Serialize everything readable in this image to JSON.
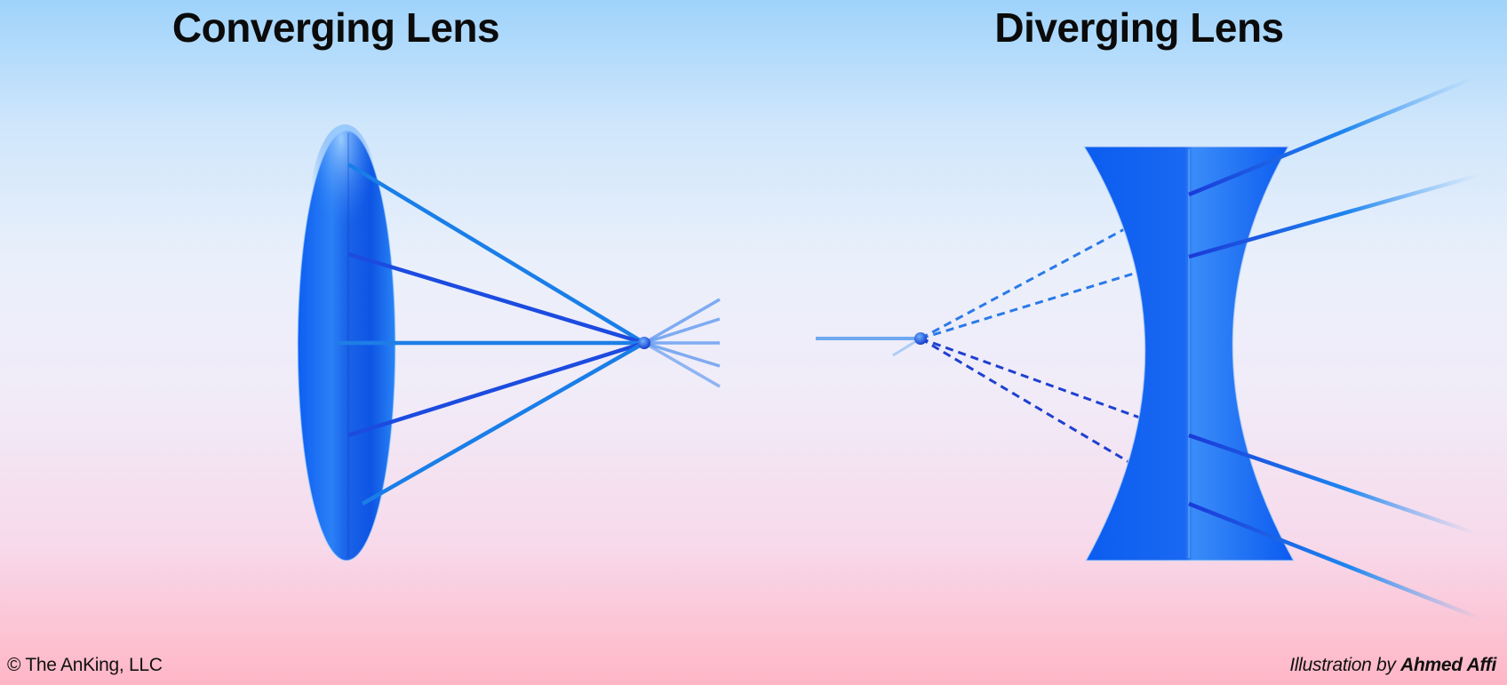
{
  "titles": {
    "converging": "Converging Lens",
    "diverging": "Diverging Lens"
  },
  "footer": {
    "copyright": "© The AnKing, LLC",
    "credit_prefix": "Illustration by ",
    "credit_name": "Ahmed Affi"
  },
  "colors": {
    "lens_blue": "#1a6cf2",
    "ray_bright": "#1e8cf0",
    "ray_dark": "#1a2fd8",
    "focal_point": "#1340d6",
    "virtual_ray": "#2a7ae8"
  }
}
